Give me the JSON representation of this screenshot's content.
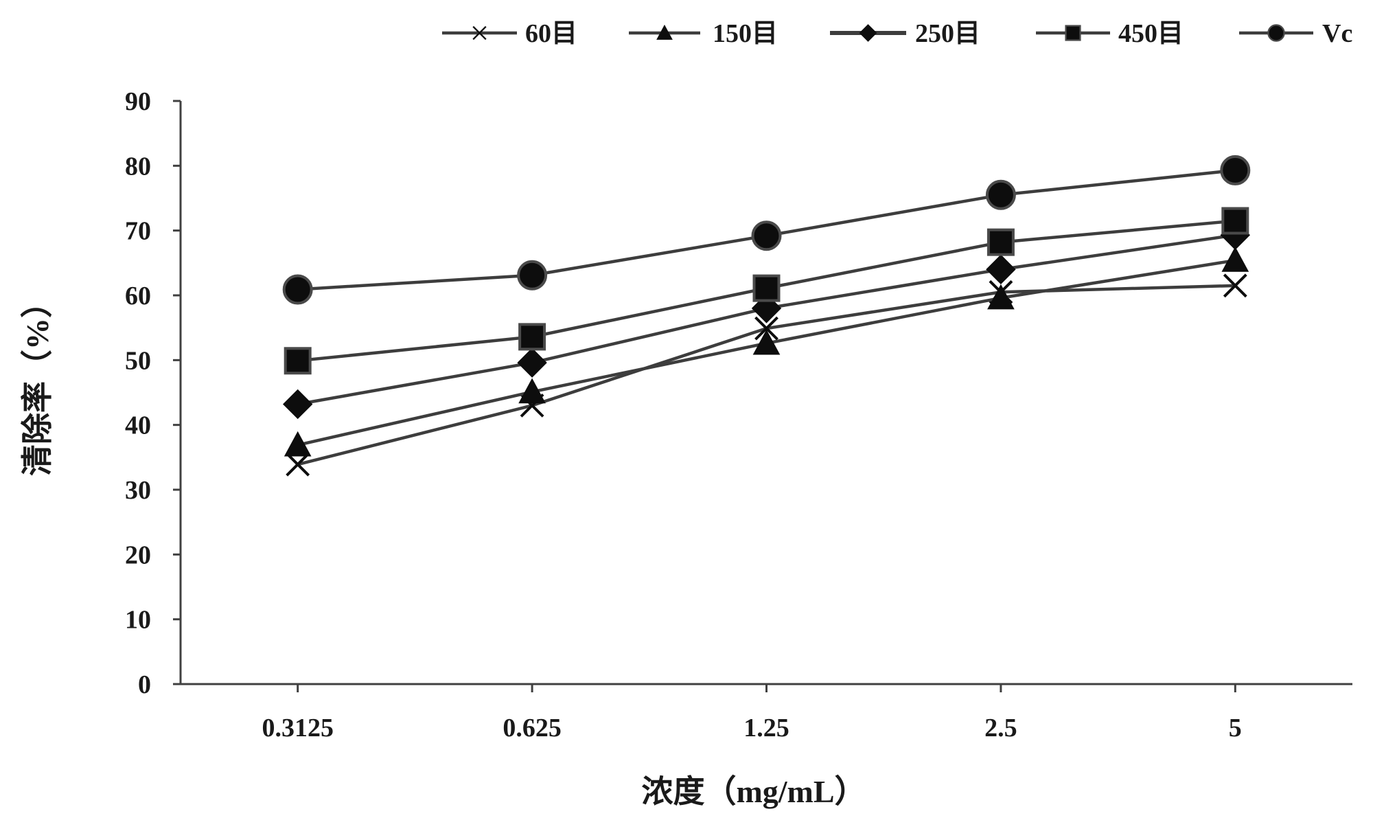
{
  "chart_data": {
    "type": "line",
    "title": "",
    "xlabel": "浓度（mg/mL）",
    "ylabel": "清除率（%）",
    "categories": [
      "0.3125",
      "0.625",
      "1.25",
      "2.5",
      "5"
    ],
    "ylim": [
      0,
      90
    ],
    "yticks": [
      0,
      10,
      20,
      30,
      40,
      50,
      60,
      70,
      80,
      90
    ],
    "grid": false,
    "legend_position": "top-right",
    "series": [
      {
        "name": "60目",
        "marker": "cross",
        "values": [
          33.9,
          43.0,
          54.9,
          60.5,
          61.5
        ]
      },
      {
        "name": "150目",
        "marker": "triangle",
        "values": [
          36.9,
          45.1,
          52.6,
          59.6,
          65.4
        ]
      },
      {
        "name": "250目",
        "marker": "diamond",
        "values": [
          43.2,
          49.6,
          58.0,
          64.0,
          69.3
        ]
      },
      {
        "name": "450目",
        "marker": "square",
        "values": [
          49.9,
          53.6,
          61.1,
          68.2,
          71.5
        ]
      },
      {
        "name": "Vc",
        "marker": "circle",
        "values": [
          60.9,
          63.1,
          69.2,
          75.5,
          79.3
        ]
      }
    ]
  },
  "colors": {
    "axis": "#404040",
    "line": "#3d3d3d",
    "marker_fill": "#0d0d0d",
    "marker_stroke": "#4a4a4a",
    "text": "#1a1a1a"
  }
}
